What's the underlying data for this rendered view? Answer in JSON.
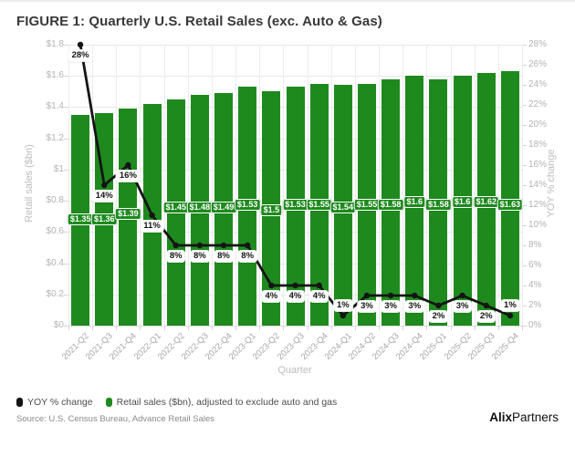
{
  "title": "FIGURE 1: Quarterly U.S. Retail Sales (exc. Auto & Gas)",
  "chart_data": {
    "type": "bar",
    "title": "FIGURE 1: Quarterly U.S. Retail Sales (exc. Auto & Gas)",
    "categories": [
      "2021-Q2",
      "2021-Q3",
      "2021-Q4",
      "2022-Q1",
      "2022-Q2",
      "2022-Q3",
      "2022-Q4",
      "2023-Q1",
      "2023-Q2",
      "2023-Q3",
      "2023-Q4",
      "2024-Q1",
      "2024-Q2",
      "2024-Q3",
      "2024-Q4",
      "2025-Q1",
      "2025-Q2",
      "2025-Q3",
      "2025-Q4"
    ],
    "series": [
      {
        "name": "Retail sales ($bn), adjusted to exclude auto and gas",
        "type": "bar",
        "axis": "left",
        "color": "#1e8a1e",
        "values": [
          1.35,
          1.36,
          1.39,
          1.42,
          1.45,
          1.48,
          1.49,
          1.53,
          1.5,
          1.53,
          1.55,
          1.54,
          1.55,
          1.58,
          1.6,
          1.58,
          1.6,
          1.62,
          1.63
        ],
        "labels": [
          "$1.35",
          "$1.36",
          "$1.39",
          null,
          "$1.45",
          "$1.48",
          "$1.49",
          "$1.53",
          "$1.5",
          "$1.53",
          "$1.55",
          "$1.54",
          "$1.55",
          "$1.58",
          "$1.6",
          "$1.58",
          "$1.6",
          "$1.62",
          "$1.63"
        ]
      },
      {
        "name": "YOY % change",
        "type": "line",
        "axis": "right",
        "color": "#141414",
        "values": [
          28,
          14,
          16,
          11,
          8,
          8,
          8,
          8,
          4,
          4,
          4,
          1,
          3,
          3,
          3,
          2,
          3,
          2,
          1
        ],
        "labels": [
          "28%",
          "14%",
          "16%",
          "11%",
          "8%",
          "8%",
          "8%",
          "8%",
          "4%",
          "4%",
          "4%",
          "1%",
          "3%",
          "3%",
          "3%",
          "2%",
          "3%",
          "2%",
          "1%"
        ]
      }
    ],
    "xlabel": "Quarter",
    "y_axis_left": {
      "label": "Retail sales ($bn)",
      "min": 0,
      "max": 1.8,
      "tick_step": 0.2,
      "ticks": [
        "$0",
        "$0.2",
        "$0.4",
        "$0.6",
        "$0.8",
        "$1",
        "$1.2",
        "$1.4",
        "$1.6",
        "$1.8"
      ]
    },
    "y_axis_right": {
      "label": "YOY % change",
      "min": 0,
      "max": 28,
      "tick_step": 2,
      "ticks": [
        "0%",
        "2%",
        "4%",
        "6%",
        "8%",
        "10%",
        "12%",
        "14%",
        "16%",
        "18%",
        "20%",
        "22%",
        "24%",
        "26%",
        "28%"
      ]
    },
    "grid": "horizontal and vertical, light gray",
    "legend_position": "bottom-left"
  },
  "legend": {
    "items": [
      {
        "label": "YOY % change",
        "color": "#141414"
      },
      {
        "label": "Retail sales ($bn), adjusted to exclude auto and gas",
        "color": "#1e8a1e"
      }
    ]
  },
  "footer": {
    "source": "Source: U.S. Census Bureau, Advance Retail Sales",
    "brand_bold": "Alix",
    "brand_regular": "Partners"
  }
}
